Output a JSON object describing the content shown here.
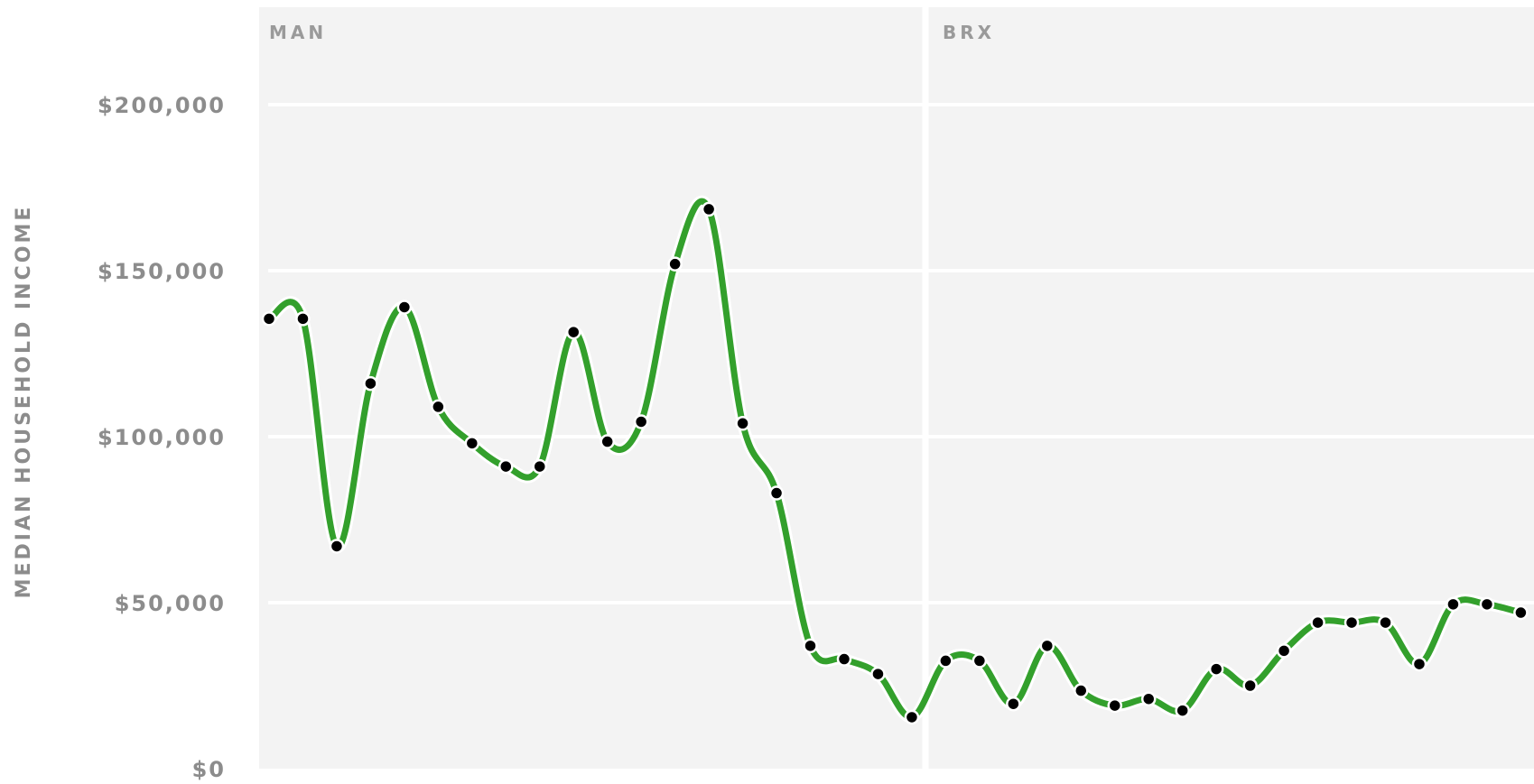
{
  "chart_data": {
    "type": "line",
    "ylabel": "MEDIAN HOUSEHOLD INCOME",
    "ylim": [
      0,
      230000
    ],
    "yticks": [
      0,
      50000,
      100000,
      150000,
      200000
    ],
    "ytick_labels": [
      "$0",
      "$50,000",
      "$100,000",
      "$150,000",
      "$200,000"
    ],
    "grid": true,
    "line_color": "#33a02c",
    "marker_color": "#000000",
    "panel_background": "#f3f3f3",
    "panels": [
      {
        "label": "MAN",
        "values": [
          135500,
          135500,
          67000,
          116000,
          139000,
          109000,
          98000,
          91000,
          91000,
          131500,
          98500,
          104500,
          152000,
          168500,
          104000,
          83000
        ]
      },
      {
        "label": "",
        "values": [
          37000,
          33000,
          28500,
          15500
        ]
      },
      {
        "label": "BRX",
        "values": [
          32500,
          32500,
          19500,
          37000,
          23500,
          19000,
          21000,
          17500,
          30000,
          25000,
          35500,
          44000,
          44000,
          44000,
          31500,
          49500,
          49500,
          47000
        ]
      }
    ]
  }
}
